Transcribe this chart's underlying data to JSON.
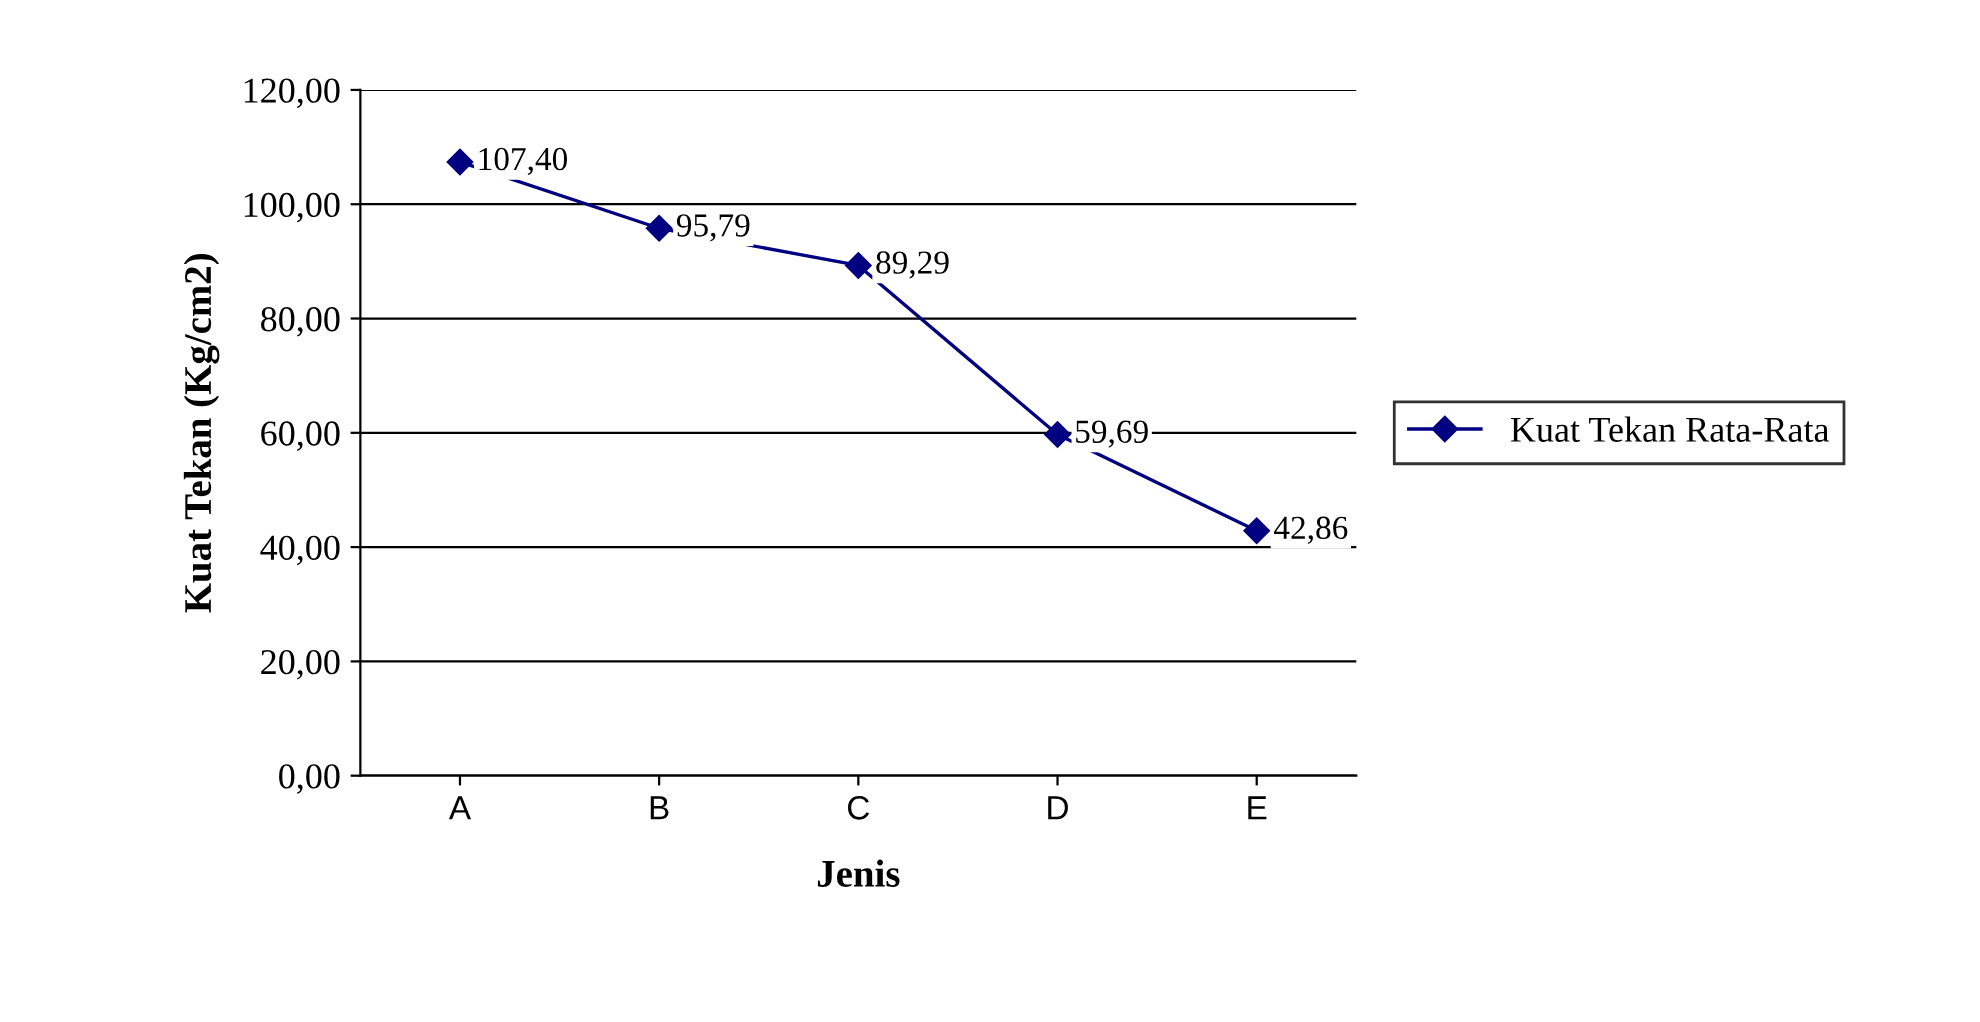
{
  "chart_data": {
    "type": "line",
    "xlabel": "Jenis",
    "ylabel": "Kuat Tekan (Kg/cm2)",
    "categories": [
      "A",
      "B",
      "C",
      "D",
      "E"
    ],
    "series": [
      {
        "name": "Kuat Tekan Rata-Rata",
        "color": "#000080",
        "values": [
          107.4,
          95.79,
          89.29,
          59.69,
          42.86
        ],
        "value_labels": [
          "107,40",
          "95,79",
          "89,29",
          "59,69",
          "42,86"
        ]
      }
    ],
    "ylim": [
      0,
      120
    ],
    "yticks": [
      {
        "value": 0,
        "label": "0,00"
      },
      {
        "value": 20,
        "label": "20,00"
      },
      {
        "value": 40,
        "label": "40,00"
      },
      {
        "value": 60,
        "label": "60,00"
      },
      {
        "value": 80,
        "label": "80,00"
      },
      {
        "value": 100,
        "label": "100,00"
      },
      {
        "value": 120,
        "label": "120,00"
      }
    ],
    "grid": "y",
    "legend": "right",
    "marker": "diamond",
    "line_style": "solid"
  }
}
